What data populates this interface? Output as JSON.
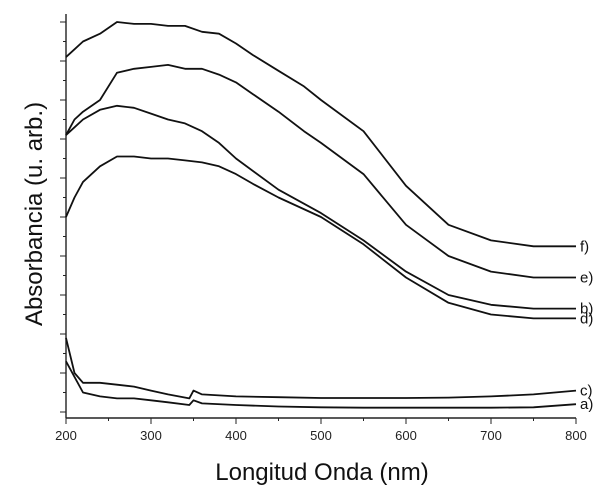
{
  "chart_data": {
    "type": "line",
    "xlabel": "Longitud Onda (nm)",
    "ylabel": "Absorbancia (u. arb.)",
    "xlim": [
      200,
      800
    ],
    "ylim": [
      0,
      1
    ],
    "xticks": [
      200,
      300,
      400,
      500,
      600,
      700,
      800
    ],
    "xtick_labels": [
      "200",
      "300",
      "400",
      "500",
      "600",
      "700",
      "800"
    ],
    "y_tick_labels_shown": false,
    "grid": false,
    "series": [
      {
        "name": "a)",
        "points": [
          [
            200,
            0.13
          ],
          [
            220,
            0.05
          ],
          [
            240,
            0.04
          ],
          [
            260,
            0.035
          ],
          [
            280,
            0.035
          ],
          [
            300,
            0.03
          ],
          [
            320,
            0.025
          ],
          [
            345,
            0.018
          ],
          [
            350,
            0.03
          ],
          [
            360,
            0.022
          ],
          [
            400,
            0.018
          ],
          [
            450,
            0.014
          ],
          [
            500,
            0.012
          ],
          [
            550,
            0.011
          ],
          [
            600,
            0.011
          ],
          [
            650,
            0.011
          ],
          [
            700,
            0.011
          ],
          [
            750,
            0.012
          ],
          [
            800,
            0.02
          ]
        ]
      },
      {
        "name": "c)",
        "points": [
          [
            200,
            0.19
          ],
          [
            210,
            0.1
          ],
          [
            220,
            0.075
          ],
          [
            240,
            0.075
          ],
          [
            260,
            0.07
          ],
          [
            280,
            0.065
          ],
          [
            300,
            0.055
          ],
          [
            320,
            0.045
          ],
          [
            345,
            0.035
          ],
          [
            350,
            0.055
          ],
          [
            360,
            0.045
          ],
          [
            400,
            0.04
          ],
          [
            450,
            0.038
          ],
          [
            500,
            0.036
          ],
          [
            550,
            0.036
          ],
          [
            600,
            0.036
          ],
          [
            650,
            0.037
          ],
          [
            700,
            0.04
          ],
          [
            750,
            0.045
          ],
          [
            800,
            0.055
          ]
        ]
      },
      {
        "name": "d)",
        "points": [
          [
            200,
            0.5
          ],
          [
            210,
            0.55
          ],
          [
            220,
            0.59
          ],
          [
            240,
            0.63
          ],
          [
            260,
            0.655
          ],
          [
            280,
            0.655
          ],
          [
            300,
            0.65
          ],
          [
            320,
            0.65
          ],
          [
            340,
            0.645
          ],
          [
            360,
            0.64
          ],
          [
            380,
            0.63
          ],
          [
            400,
            0.61
          ],
          [
            420,
            0.585
          ],
          [
            450,
            0.55
          ],
          [
            500,
            0.5
          ],
          [
            550,
            0.43
          ],
          [
            600,
            0.345
          ],
          [
            650,
            0.28
          ],
          [
            700,
            0.25
          ],
          [
            750,
            0.24
          ],
          [
            800,
            0.24
          ]
        ]
      },
      {
        "name": "b)",
        "points": [
          [
            200,
            0.71
          ],
          [
            210,
            0.73
          ],
          [
            220,
            0.75
          ],
          [
            240,
            0.775
          ],
          [
            260,
            0.785
          ],
          [
            280,
            0.78
          ],
          [
            300,
            0.765
          ],
          [
            320,
            0.75
          ],
          [
            340,
            0.74
          ],
          [
            360,
            0.72
          ],
          [
            380,
            0.69
          ],
          [
            400,
            0.65
          ],
          [
            450,
            0.57
          ],
          [
            500,
            0.51
          ],
          [
            550,
            0.44
          ],
          [
            600,
            0.36
          ],
          [
            650,
            0.3
          ],
          [
            700,
            0.275
          ],
          [
            750,
            0.265
          ],
          [
            800,
            0.265
          ]
        ]
      },
      {
        "name": "e)",
        "points": [
          [
            200,
            0.71
          ],
          [
            210,
            0.75
          ],
          [
            220,
            0.77
          ],
          [
            240,
            0.8
          ],
          [
            260,
            0.87
          ],
          [
            280,
            0.88
          ],
          [
            300,
            0.885
          ],
          [
            320,
            0.89
          ],
          [
            340,
            0.88
          ],
          [
            360,
            0.88
          ],
          [
            380,
            0.865
          ],
          [
            400,
            0.845
          ],
          [
            420,
            0.815
          ],
          [
            450,
            0.77
          ],
          [
            480,
            0.72
          ],
          [
            500,
            0.69
          ],
          [
            550,
            0.61
          ],
          [
            600,
            0.48
          ],
          [
            650,
            0.4
          ],
          [
            700,
            0.36
          ],
          [
            750,
            0.345
          ],
          [
            800,
            0.345
          ]
        ]
      },
      {
        "name": "f)",
        "points": [
          [
            200,
            0.91
          ],
          [
            210,
            0.93
          ],
          [
            220,
            0.95
          ],
          [
            240,
            0.97
          ],
          [
            260,
            1.0
          ],
          [
            280,
            0.995
          ],
          [
            300,
            0.995
          ],
          [
            320,
            0.99
          ],
          [
            340,
            0.99
          ],
          [
            360,
            0.975
          ],
          [
            380,
            0.97
          ],
          [
            400,
            0.945
          ],
          [
            420,
            0.915
          ],
          [
            450,
            0.875
          ],
          [
            480,
            0.835
          ],
          [
            500,
            0.8
          ],
          [
            550,
            0.72
          ],
          [
            600,
            0.58
          ],
          [
            650,
            0.48
          ],
          [
            700,
            0.44
          ],
          [
            750,
            0.425
          ],
          [
            800,
            0.425
          ]
        ]
      }
    ]
  }
}
